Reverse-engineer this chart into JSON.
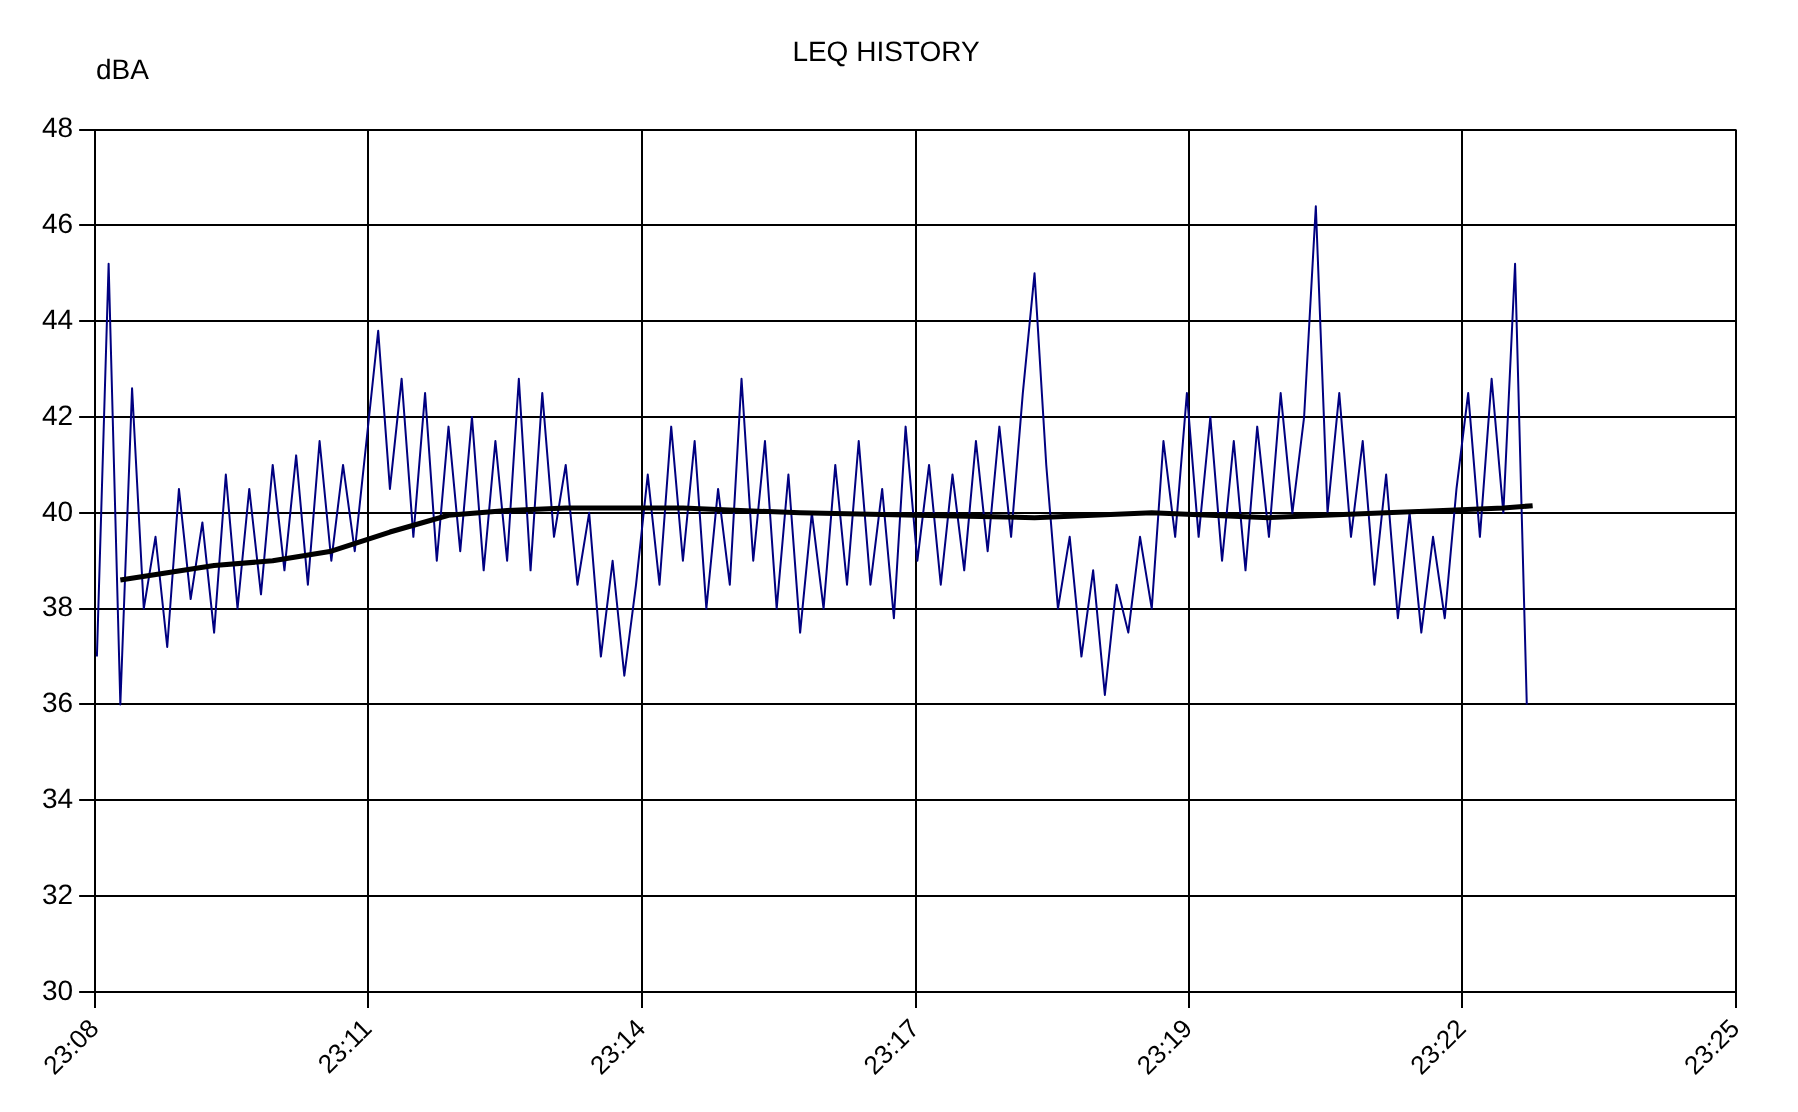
{
  "chart_data": {
    "type": "line",
    "title": "LEQ HISTORY",
    "ylabel": "dBA",
    "grid": true,
    "legend": false,
    "marker": "none",
    "line_style": "solid",
    "xlim": [
      23.1367,
      23.4167
    ],
    "xticks": [
      {
        "value": 23.1367,
        "label": "23:08"
      },
      {
        "value": 23.1833,
        "label": "23:11"
      },
      {
        "value": 23.23,
        "label": "23:14"
      },
      {
        "value": 23.2767,
        "label": "23:17"
      },
      {
        "value": 23.3233,
        "label": "23:19"
      },
      {
        "value": 23.37,
        "label": "23:22"
      },
      {
        "value": 23.4167,
        "label": "23:25"
      }
    ],
    "ylim": [
      30,
      48
    ],
    "yticks": [
      30,
      32,
      34,
      36,
      38,
      40,
      42,
      44,
      46,
      48
    ],
    "x": [
      23.137,
      23.139,
      23.141,
      23.143,
      23.145,
      23.147,
      23.149,
      23.151,
      23.153,
      23.155,
      23.157,
      23.159,
      23.161,
      23.163,
      23.165,
      23.167,
      23.169,
      23.171,
      23.173,
      23.175,
      23.177,
      23.179,
      23.181,
      23.183,
      23.185,
      23.187,
      23.189,
      23.191,
      23.193,
      23.195,
      23.197,
      23.199,
      23.201,
      23.203,
      23.205,
      23.207,
      23.209,
      23.211,
      23.213,
      23.215,
      23.217,
      23.219,
      23.221,
      23.223,
      23.225,
      23.227,
      23.229,
      23.231,
      23.233,
      23.235,
      23.237,
      23.239,
      23.241,
      23.243,
      23.245,
      23.247,
      23.249,
      23.251,
      23.253,
      23.255,
      23.257,
      23.259,
      23.261,
      23.263,
      23.265,
      23.267,
      23.269,
      23.271,
      23.273,
      23.275,
      23.277,
      23.279,
      23.281,
      23.283,
      23.285,
      23.287,
      23.289,
      23.291,
      23.293,
      23.295,
      23.297,
      23.299,
      23.301,
      23.303,
      23.305,
      23.307,
      23.309,
      23.311,
      23.313,
      23.315,
      23.317,
      23.319,
      23.321,
      23.323,
      23.325,
      23.327,
      23.329,
      23.331,
      23.333,
      23.335,
      23.337,
      23.339,
      23.341,
      23.343,
      23.345,
      23.347,
      23.349,
      23.351,
      23.353,
      23.355,
      23.357,
      23.359,
      23.361,
      23.363,
      23.365,
      23.367,
      23.369,
      23.371,
      23.373,
      23.375,
      23.377,
      23.379,
      23.381
    ],
    "series": [
      {
        "color": "#000080",
        "values": [
          37.0,
          45.2,
          36.0,
          42.6,
          38.0,
          39.5,
          37.2,
          40.5,
          38.2,
          39.8,
          37.5,
          40.8,
          38.0,
          40.5,
          38.3,
          41.0,
          38.8,
          41.2,
          38.5,
          41.5,
          39.0,
          41.0,
          39.2,
          41.5,
          43.8,
          40.5,
          42.8,
          39.5,
          42.5,
          39.0,
          41.8,
          39.2,
          42.0,
          38.8,
          41.5,
          39.0,
          42.8,
          38.8,
          42.5,
          39.5,
          41.0,
          38.5,
          40.0,
          37.0,
          39.0,
          36.6,
          38.5,
          40.8,
          38.5,
          41.8,
          39.0,
          41.5,
          38.0,
          40.5,
          38.5,
          42.8,
          39.0,
          41.5,
          38.0,
          40.8,
          37.5,
          40.0,
          38.0,
          41.0,
          38.5,
          41.5,
          38.5,
          40.5,
          37.8,
          41.8,
          39.0,
          41.0,
          38.5,
          40.8,
          38.8,
          41.5,
          39.2,
          41.8,
          39.5,
          42.5,
          45.0,
          41.0,
          38.0,
          39.5,
          37.0,
          38.8,
          36.2,
          38.5,
          37.5,
          39.5,
          38.0,
          41.5,
          39.5,
          42.5,
          39.5,
          42.0,
          39.0,
          41.5,
          38.8,
          41.8,
          39.5,
          42.5,
          40.0,
          42.0,
          46.4,
          40.0,
          42.5,
          39.5,
          41.5,
          38.5,
          40.8,
          37.8,
          40.0,
          37.5,
          39.5,
          37.8,
          40.5,
          42.5,
          39.5,
          42.8,
          40.0,
          45.2,
          36.0
        ]
      },
      {
        "color": "#000000",
        "x": [
          23.141,
          23.157,
          23.167,
          23.177,
          23.187,
          23.197,
          23.207,
          23.217,
          23.237,
          23.257,
          23.277,
          23.297,
          23.317,
          23.327,
          23.337,
          23.357,
          23.377,
          23.382
        ],
        "values": [
          38.6,
          38.9,
          39.0,
          39.2,
          39.6,
          39.95,
          40.05,
          40.1,
          40.1,
          40.0,
          39.95,
          39.9,
          40.0,
          39.95,
          39.9,
          40.0,
          40.1,
          40.15
        ]
      }
    ]
  }
}
